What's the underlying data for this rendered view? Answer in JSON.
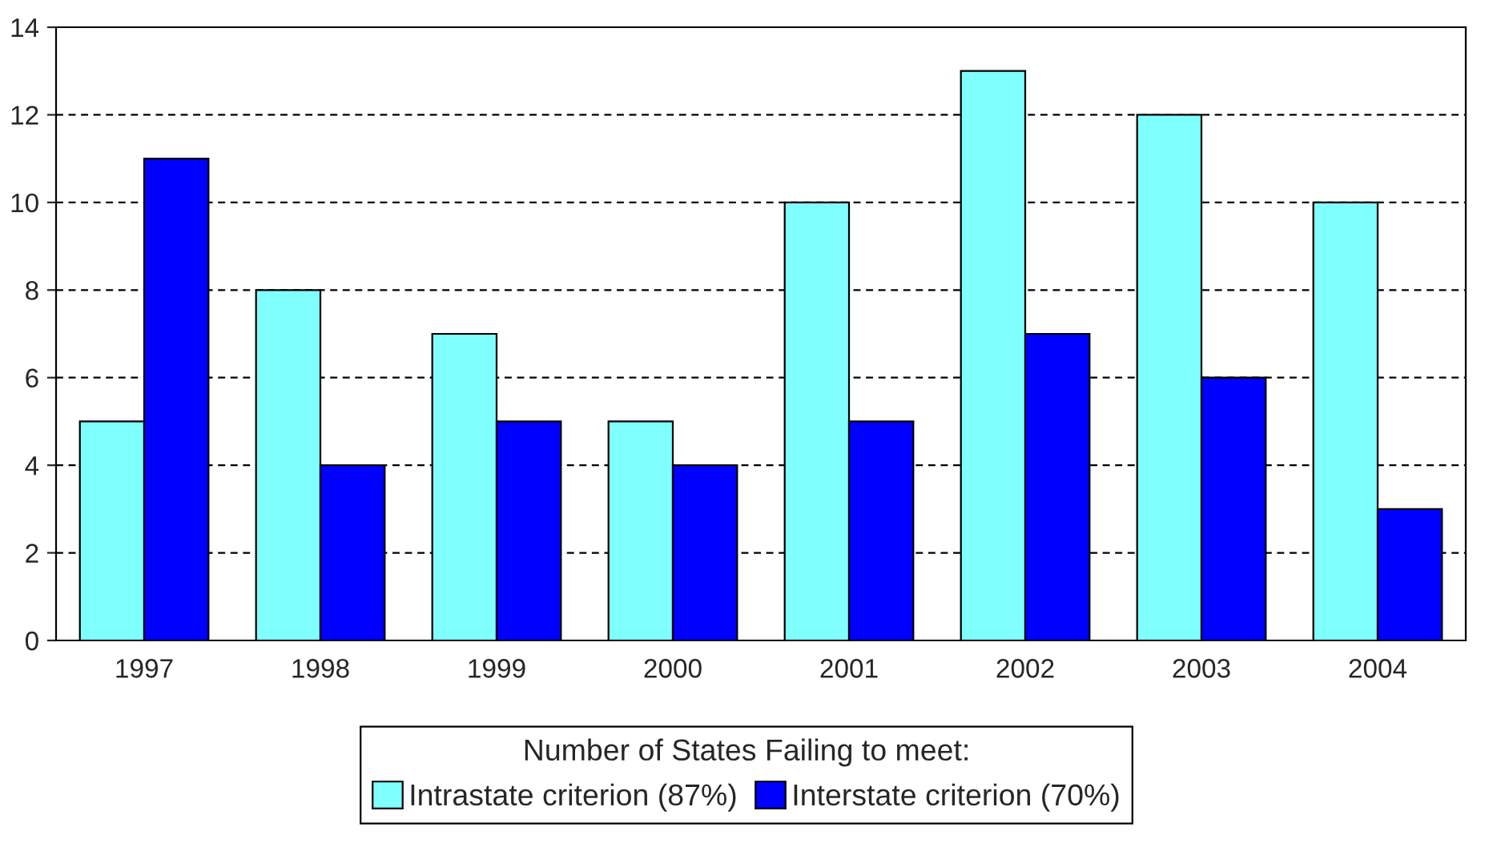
{
  "chart_data": {
    "type": "bar",
    "categories": [
      "1997",
      "1998",
      "1999",
      "2000",
      "2001",
      "2002",
      "2003",
      "2004"
    ],
    "series": [
      {
        "name": "Intrastate criterion (87%)",
        "color": "#80ffff",
        "values": [
          5,
          8,
          7,
          5,
          10,
          13,
          12,
          10
        ]
      },
      {
        "name": "Interstate criterion (70%)",
        "color": "#0000ff",
        "values": [
          11,
          4,
          5,
          4,
          5,
          7,
          6,
          3
        ]
      }
    ],
    "legend_title": "Number of States Failing to meet:",
    "ylim": [
      0,
      14
    ],
    "yticks": [
      0,
      2,
      4,
      6,
      8,
      10,
      12,
      14
    ],
    "grid": "y",
    "legend": "bottom"
  }
}
